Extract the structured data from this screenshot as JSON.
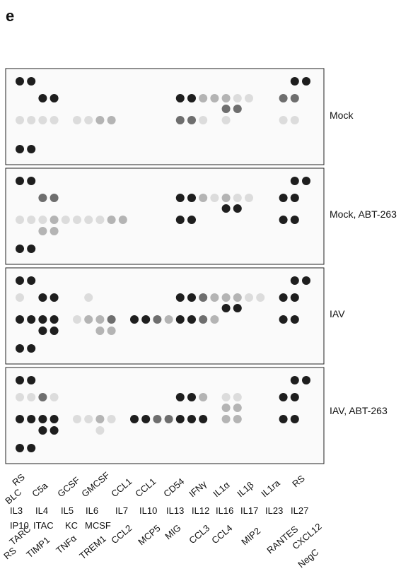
{
  "panel_letter": "e",
  "panels": [
    {
      "label": "Mock"
    },
    {
      "label": "Mock, ABT-263"
    },
    {
      "label": "IAV"
    },
    {
      "label": "IAV, ABT-263"
    }
  ],
  "array_labels": [
    "RS",
    "BLC",
    "C5a",
    "GCSF",
    "GMCSF",
    "CCL1",
    "CCL1",
    "CD54",
    "IFNγ",
    "IL1α",
    "IL1β",
    "IL1ra",
    "RS",
    "IL3",
    "IL4",
    "IL5",
    "IL6",
    "IL7",
    "IL10",
    "IL13",
    "IL12",
    "IL16",
    "IL17",
    "IL23",
    "IL27",
    "IP10",
    "ITAC",
    "KC",
    "MCSF",
    "CCL2",
    "MCP5",
    "MIG",
    "CCL3",
    "CCL4",
    "MIP2",
    "RANTES",
    "CXCL12",
    "TARC",
    "RS",
    "TIMP1",
    "TNFα",
    "TREM1",
    "NegC"
  ]
}
